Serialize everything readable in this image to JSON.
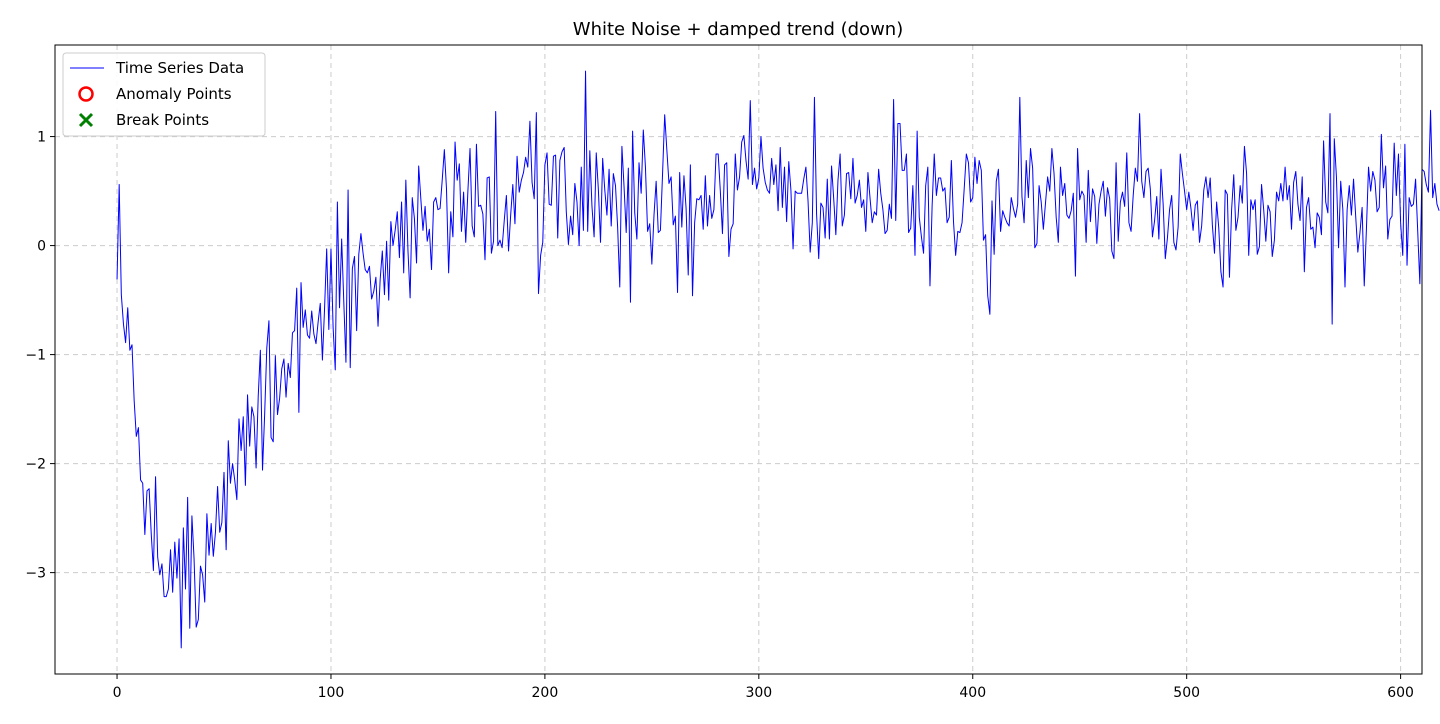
{
  "chart_data": {
    "type": "line",
    "title": "White Noise + damped trend (down)",
    "xlabel": "",
    "ylabel": "",
    "xlim": [
      -29,
      610
    ],
    "ylim": [
      -3.93,
      1.84
    ],
    "x_ticks": [
      0,
      100,
      200,
      300,
      400,
      500,
      600
    ],
    "x_tick_labels": [
      "0",
      "100",
      "200",
      "300",
      "400",
      "500",
      "600"
    ],
    "y_ticks": [
      -3,
      -2,
      -1,
      0,
      1
    ],
    "y_tick_labels": [
      "−3",
      "−2",
      "−1",
      "0",
      "1"
    ],
    "grid": true,
    "legend_position": "top-left",
    "legend": [
      {
        "label": "Time Series Data",
        "marker": "line",
        "color": "#0000ff"
      },
      {
        "label": "Anomaly Points",
        "marker": "circle",
        "color": "#ff0000"
      },
      {
        "label": "Break Points",
        "marker": "x",
        "color": "#008000"
      }
    ],
    "series": [
      {
        "name": "Time Series Data",
        "color": "#0000ff",
        "x_start": 0,
        "x_step": 1,
        "values": [
          -0.31,
          0.56,
          -0.45,
          -0.72,
          -0.89,
          -0.57,
          -0.96,
          -0.91,
          -1.42,
          -1.75,
          -1.67,
          -2.15,
          -2.18,
          -2.65,
          -2.25,
          -2.23,
          -2.65,
          -2.98,
          -2.12,
          -2.86,
          -3.02,
          -2.92,
          -3.22,
          -3.22,
          -3.15,
          -2.79,
          -3.18,
          -2.72,
          -3.05,
          -2.69,
          -3.69,
          -2.59,
          -3.15,
          -2.31,
          -3.51,
          -2.48,
          -2.87,
          -3.5,
          -3.43,
          -2.94,
          -3.02,
          -3.27,
          -2.46,
          -2.84,
          -2.55,
          -2.85,
          -2.63,
          -2.21,
          -2.63,
          -2.54,
          -2.08,
          -2.79,
          -1.79,
          -2.18,
          -2.0,
          -2.15,
          -2.33,
          -1.59,
          -1.88,
          -1.57,
          -2.2,
          -1.37,
          -1.84,
          -1.48,
          -1.57,
          -2.04,
          -1.38,
          -0.96,
          -2.06,
          -1.55,
          -0.94,
          -0.69,
          -1.76,
          -1.8,
          -1.01,
          -1.55,
          -1.4,
          -1.13,
          -1.04,
          -1.39,
          -1.08,
          -1.21,
          -0.8,
          -0.78,
          -0.39,
          -1.53,
          -0.34,
          -0.75,
          -0.59,
          -0.82,
          -0.85,
          -0.6,
          -0.81,
          -0.9,
          -0.7,
          -0.53,
          -1.05,
          -0.58,
          -0.03,
          -0.77,
          -0.03,
          -0.75,
          -1.14,
          0.4,
          -0.57,
          0.06,
          -0.52,
          -1.07,
          0.51,
          -1.12,
          -0.21,
          -0.1,
          -0.78,
          -0.08,
          0.11,
          -0.07,
          -0.22,
          -0.25,
          -0.19,
          -0.49,
          -0.42,
          -0.29,
          -0.74,
          -0.31,
          -0.05,
          -0.45,
          0.04,
          -0.5,
          0.22,
          0.0,
          0.14,
          0.31,
          -0.11,
          0.4,
          -0.25,
          0.6,
          -0.05,
          -0.48,
          0.44,
          0.25,
          -0.16,
          0.73,
          0.43,
          0.14,
          0.36,
          0.04,
          0.15,
          -0.22,
          0.4,
          0.44,
          0.33,
          0.34,
          0.6,
          0.88,
          0.52,
          -0.25,
          0.31,
          0.08,
          0.95,
          0.6,
          0.75,
          0.13,
          0.49,
          0.03,
          0.5,
          0.89,
          0.18,
          0.08,
          0.93,
          0.36,
          0.37,
          0.29,
          -0.13,
          0.62,
          0.63,
          -0.07,
          0.04,
          1.23,
          0.0,
          0.05,
          -0.02,
          0.23,
          0.46,
          -0.05,
          0.28,
          0.56,
          0.2,
          0.82,
          0.49,
          0.6,
          0.67,
          0.81,
          0.72,
          1.14,
          0.58,
          0.43,
          1.22,
          -0.44,
          -0.09,
          0.03,
          0.74,
          0.85,
          0.38,
          0.37,
          0.82,
          0.83,
          0.07,
          0.78,
          0.86,
          0.9,
          0.31,
          0.01,
          0.27,
          0.1,
          0.57,
          0.4,
          0.0,
          0.72,
          0.14,
          1.6,
          0.13,
          0.87,
          0.36,
          0.08,
          0.85,
          0.51,
          0.03,
          0.8,
          0.51,
          0.28,
          0.7,
          0.18,
          0.66,
          0.55,
          0.17,
          -0.38,
          0.91,
          0.54,
          0.12,
          0.71,
          -0.52,
          1.05,
          0.3,
          0.06,
          0.76,
          0.48,
          1.06,
          0.72,
          0.13,
          0.2,
          -0.17,
          0.28,
          0.59,
          0.12,
          0.14,
          0.66,
          1.2,
          0.88,
          0.57,
          0.63,
          0.19,
          0.27,
          -0.43,
          0.67,
          0.17,
          0.64,
          0.34,
          -0.27,
          0.74,
          -0.46,
          0.21,
          0.43,
          0.42,
          0.46,
          0.15,
          0.64,
          0.18,
          0.46,
          0.25,
          0.33,
          0.84,
          0.84,
          0.5,
          0.11,
          0.74,
          0.76,
          -0.1,
          0.15,
          0.2,
          0.84,
          0.51,
          0.63,
          0.95,
          1.01,
          0.78,
          0.61,
          1.33,
          0.56,
          0.71,
          0.52,
          0.62,
          1.0,
          0.71,
          0.58,
          0.51,
          0.48,
          0.8,
          0.56,
          0.74,
          0.32,
          0.9,
          0.35,
          0.72,
          0.22,
          0.77,
          0.51,
          -0.03,
          0.5,
          0.48,
          0.48,
          0.48,
          0.61,
          0.72,
          0.41,
          -0.06,
          0.21,
          1.36,
          0.29,
          -0.12,
          0.39,
          0.35,
          0.07,
          0.61,
          0.06,
          0.73,
          0.43,
          0.1,
          0.6,
          0.84,
          0.18,
          0.28,
          0.66,
          0.67,
          0.43,
          0.8,
          0.39,
          0.46,
          0.6,
          0.35,
          0.42,
          0.13,
          0.67,
          0.43,
          0.21,
          0.31,
          0.28,
          0.7,
          0.48,
          0.33,
          0.11,
          0.14,
          0.38,
          0.25,
          1.34,
          0.23,
          1.12,
          1.12,
          0.69,
          0.69,
          0.84,
          0.12,
          0.16,
          0.55,
          -0.09,
          1.05,
          0.26,
          0.08,
          -0.07,
          0.55,
          0.72,
          -0.37,
          0.36,
          0.84,
          0.46,
          0.62,
          0.62,
          0.5,
          0.53,
          0.21,
          0.26,
          0.78,
          0.22,
          -0.09,
          0.13,
          0.12,
          0.21,
          0.52,
          0.84,
          0.76,
          0.4,
          0.44,
          0.81,
          0.57,
          0.78,
          0.69,
          0.05,
          0.1,
          -0.46,
          -0.63,
          0.41,
          -0.08,
          0.59,
          0.7,
          0.13,
          0.32,
          0.26,
          0.21,
          0.18,
          0.44,
          0.34,
          0.26,
          0.38,
          1.36,
          0.45,
          0.21,
          0.78,
          0.44,
          0.89,
          0.71,
          -0.02,
          0.02,
          0.55,
          0.4,
          0.15,
          0.39,
          0.63,
          0.5,
          0.89,
          0.66,
          0.26,
          0.03,
          0.72,
          0.46,
          0.57,
          0.28,
          0.25,
          0.32,
          0.48,
          -0.28,
          0.89,
          0.42,
          0.5,
          0.46,
          0.03,
          0.69,
          0.22,
          0.52,
          0.45,
          0.02,
          0.38,
          0.5,
          0.59,
          0.27,
          0.53,
          0.43,
          -0.05,
          -0.12,
          0.76,
          0.04,
          0.4,
          0.49,
          0.36,
          0.85,
          0.21,
          0.13,
          0.46,
          0.71,
          0.59,
          1.21,
          0.59,
          0.44,
          0.68,
          0.71,
          0.52,
          0.08,
          0.23,
          0.45,
          0.06,
          0.7,
          0.38,
          -0.12,
          0.07,
          0.33,
          0.46,
          0.03,
          -0.04,
          0.17,
          0.84,
          0.66,
          0.5,
          0.33,
          0.49,
          0.34,
          0.14,
          0.37,
          0.41,
          0.03,
          0.18,
          0.51,
          0.63,
          0.44,
          0.62,
          0.19,
          -0.07,
          0.4,
          0.16,
          -0.24,
          -0.38,
          0.51,
          0.47,
          -0.29,
          0.33,
          0.65,
          0.14,
          0.26,
          0.55,
          0.39,
          0.91,
          0.66,
          -0.09,
          0.42,
          0.33,
          0.42,
          -0.08,
          -0.01,
          0.56,
          0.33,
          0.04,
          0.37,
          0.31,
          -0.1,
          0.05,
          0.49,
          0.41,
          0.57,
          0.41,
          0.72,
          0.42,
          0.55,
          0.15,
          0.58,
          0.68,
          0.38,
          0.23,
          0.63,
          -0.24,
          0.35,
          0.44,
          0.15,
          0.17,
          -0.02,
          0.3,
          0.26,
          0.1,
          0.96,
          0.4,
          0.3,
          1.21,
          -0.72,
          0.98,
          0.63,
          -0.02,
          0.59,
          0.33,
          -0.38,
          0.33,
          0.55,
          0.28,
          0.61,
          0.27,
          -0.06,
          0.12,
          0.35,
          -0.37,
          0.14,
          0.72,
          0.5,
          0.68,
          0.6,
          0.31,
          0.35,
          1.02,
          0.53,
          0.73,
          0.06,
          0.24,
          0.27,
          0.94,
          0.46,
          0.84,
          0.21,
          -0.09,
          0.93,
          -0.18,
          0.44,
          0.36,
          0.38,
          0.61,
          0.13,
          -0.35,
          0.7,
          0.68,
          0.56,
          0.49,
          1.24,
          0.44,
          0.57,
          0.38,
          0.32
        ]
      }
    ],
    "anomaly_points": [],
    "break_points": []
  }
}
